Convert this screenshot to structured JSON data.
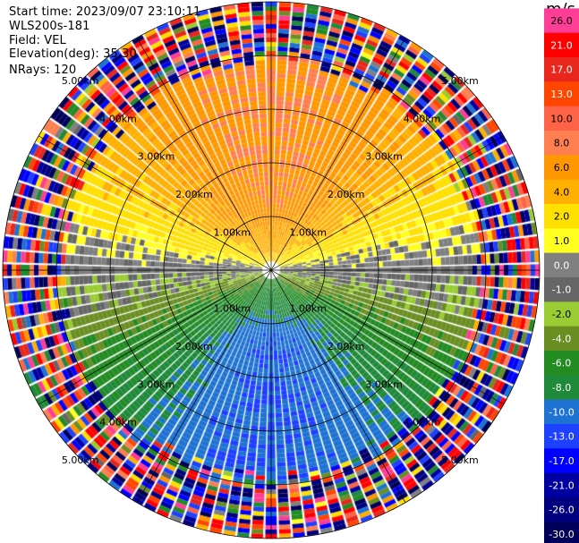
{
  "header": {
    "start_time": "Start time: 2023/09/07 23:10:11",
    "instrument": "WLS200s-181",
    "field": "Field: VEL",
    "elevation": "Elevation(deg): 35.30",
    "nrays": "NRays: 120"
  },
  "colorbar": {
    "unit": "m/s",
    "ticks": [
      "26.0",
      "21.0",
      "17.0",
      "13.0",
      "10.0",
      "8.0",
      "6.0",
      "4.0",
      "2.0",
      "1.0",
      "0.0",
      "-1.0",
      "-2.0",
      "-4.0",
      "-6.0",
      "-8.0",
      "-10.0",
      "-13.0",
      "-17.0",
      "-21.0",
      "-26.0",
      "-30.0"
    ],
    "colors": [
      "#ff3c96",
      "#ff0000",
      "#e8261c",
      "#ff4500",
      "#ff6347",
      "#ff7f50",
      "#ff9800",
      "#ffb000",
      "#ffe000",
      "#ffff20",
      "#808080",
      "#666666",
      "#9acd32",
      "#6b8e23",
      "#228b22",
      "#1f8a3a",
      "#1e73d2",
      "#1e40ff",
      "#0000ff",
      "#0000a0",
      "#000080",
      "#00005a"
    ]
  },
  "chart_data": {
    "type": "heatmap",
    "plot_type": "PPI (plan position indicator), polar",
    "field": "VEL",
    "units": "m/s",
    "nrays": 120,
    "elevation_deg": 35.3,
    "range_rings_km": [
      1.0,
      2.0,
      3.0,
      4.0,
      5.0
    ],
    "ring_labels": [
      "1.00km",
      "2.00km",
      "3.00km",
      "4.00km",
      "5.00km"
    ],
    "max_range_km": 5.0,
    "color_levels": [
      -30,
      -26,
      -21,
      -17,
      -13,
      -10,
      -8,
      -6,
      -4,
      -2,
      -1,
      0,
      1,
      2,
      4,
      6,
      8,
      10,
      13,
      17,
      21,
      26
    ],
    "pattern": {
      "description": "Dipole radial velocity: positive (away, warm colours) toward the north, negative (toward, green/blue) toward the south; noise/aliased speckle beyond ~4 km",
      "peak_positive_ms": 8.0,
      "peak_negative_ms": -10.0,
      "max_wind_direction_deg": 0,
      "clean_data_range_km": 4.0
    },
    "grid": true
  }
}
